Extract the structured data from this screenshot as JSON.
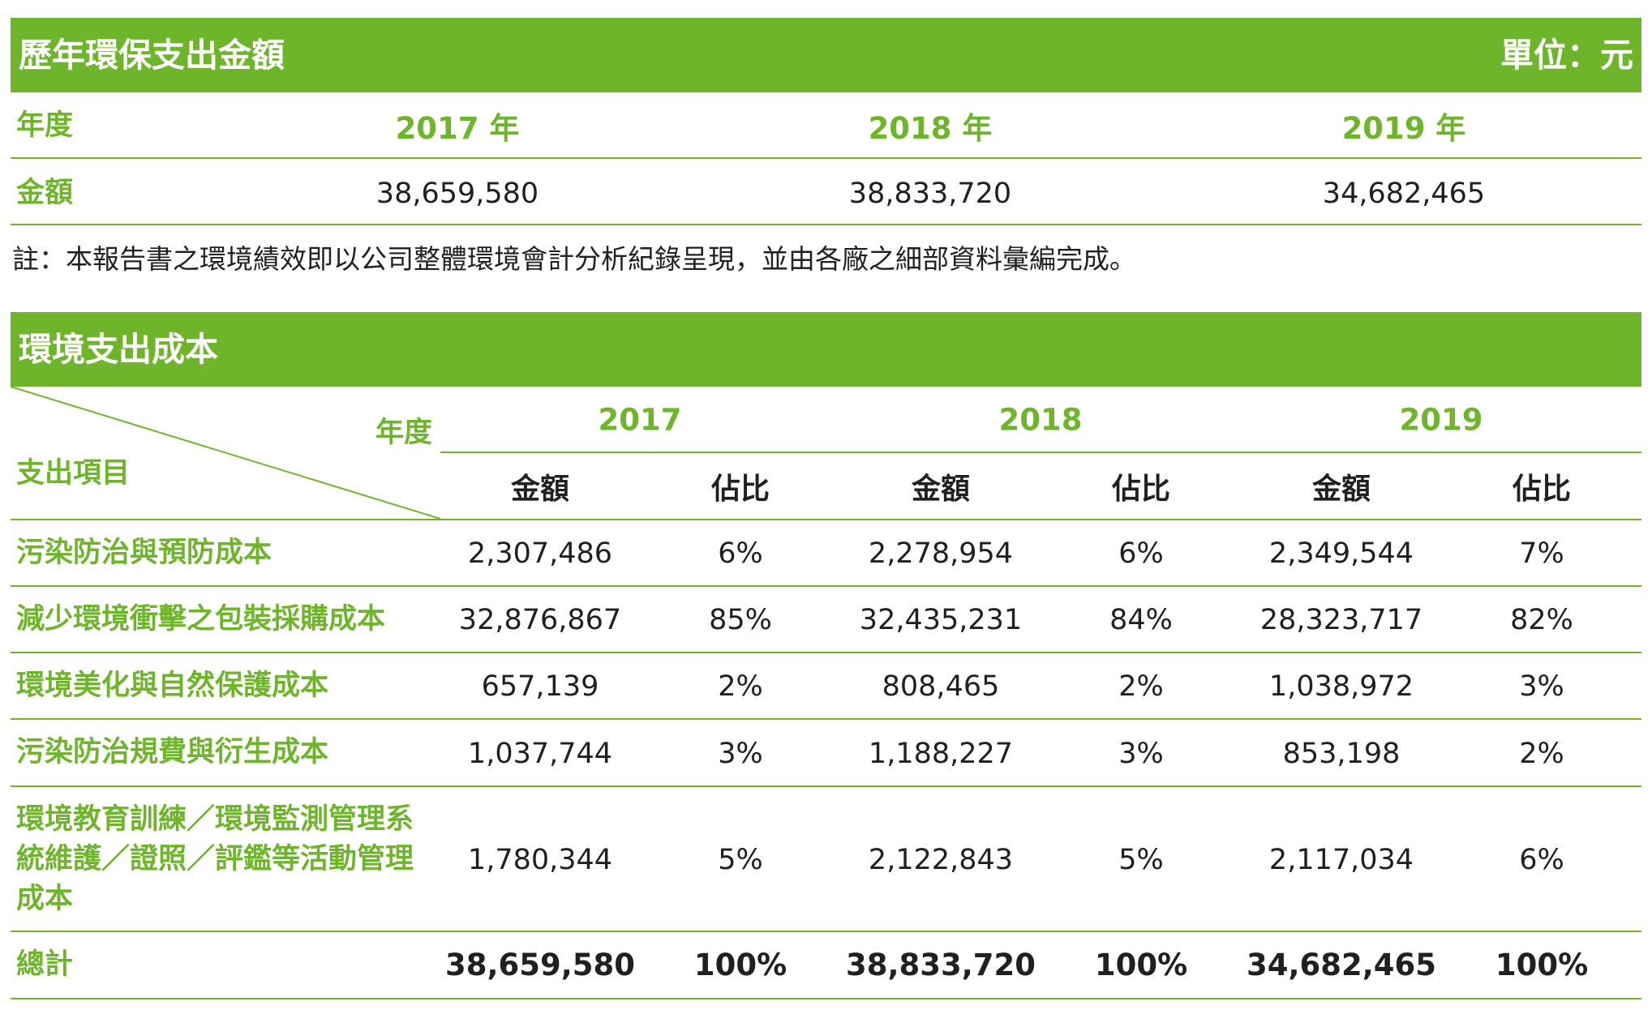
{
  "table1": {
    "title": "歷年環保支出金額",
    "unit": "單位：元",
    "year_label": "年度",
    "years": [
      "2017 年",
      "2018 年",
      "2019 年"
    ],
    "amount_label": "金額",
    "amounts": [
      "38,659,580",
      "38,833,720",
      "34,682,465"
    ],
    "note": "註：本報告書之環境績效即以公司整體環境會計分析紀錄呈現，並由各廠之細部資料彙編完成。"
  },
  "table2": {
    "title": "環境支出成本",
    "corner_year_label": "年度",
    "corner_item_label": "支出項目",
    "years": [
      "2017",
      "2018",
      "2019"
    ],
    "amount_header": "金額",
    "ratio_header": "佔比",
    "rows": [
      {
        "label": "污染防治與預防成本",
        "values": [
          "2,307,486",
          "6%",
          "2,278,954",
          "6%",
          "2,349,544",
          "7%"
        ]
      },
      {
        "label": "減少環境衝擊之包裝採購成本",
        "values": [
          "32,876,867",
          "85%",
          "32,435,231",
          "84%",
          "28,323,717",
          "82%"
        ]
      },
      {
        "label": "環境美化與自然保護成本",
        "values": [
          "657,139",
          "2%",
          "808,465",
          "2%",
          "1,038,972",
          "3%"
        ]
      },
      {
        "label": "污染防治規費與衍生成本",
        "values": [
          "1,037,744",
          "3%",
          "1,188,227",
          "3%",
          "853,198",
          "2%"
        ]
      },
      {
        "label_lines": [
          "環境教育訓練／環境監測管理系",
          "統維護／證照／評鑑等活動管理",
          "成本"
        ],
        "values": [
          "1,780,344",
          "5%",
          "2,122,843",
          "5%",
          "2,117,034",
          "6%"
        ]
      }
    ],
    "total": {
      "label": "總計",
      "values": [
        "38,659,580",
        "100%",
        "38,833,720",
        "100%",
        "34,682,465",
        "100%"
      ]
    }
  },
  "colors": {
    "accent": "#6fb52c",
    "text": "#231f20",
    "bar_text": "#ffffff"
  }
}
